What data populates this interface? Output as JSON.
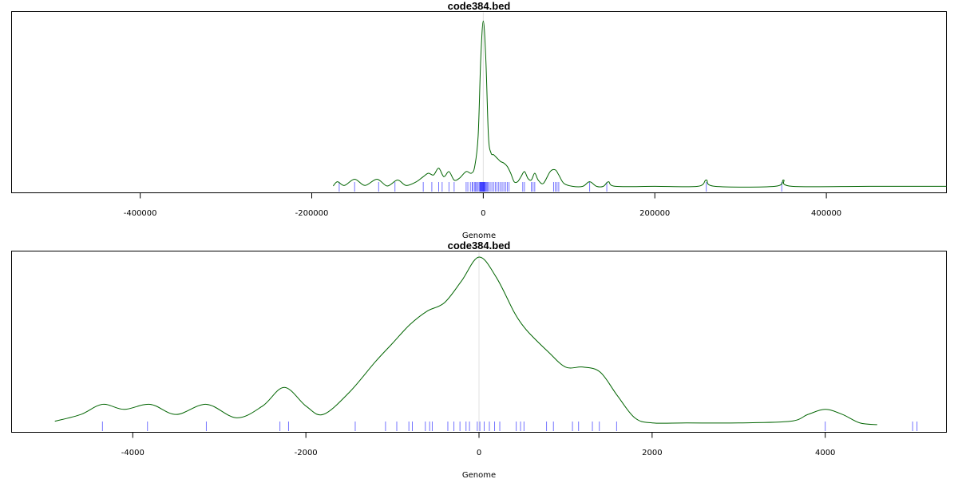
{
  "chart_data": [
    {
      "type": "line",
      "title": "code384.bed",
      "xlabel": "Genome",
      "ylabel": "",
      "xlim": [
        -550000,
        540000
      ],
      "ylim": [
        0,
        1
      ],
      "x_ticks": [
        -400000,
        -200000,
        0,
        200000,
        400000
      ],
      "x_tick_labels": [
        "-400000",
        "-200000",
        "0",
        "200000",
        "400000"
      ],
      "grid": false,
      "line_color": "#006400",
      "rug_color": "#0000ff",
      "center_line_x": 0,
      "density": {
        "x": [
          -175000,
          -170000,
          -162000,
          -150000,
          -138000,
          -124000,
          -112000,
          -100000,
          -90000,
          -78000,
          -70000,
          -64000,
          -58000,
          -52000,
          -46000,
          -40000,
          -34000,
          -28000,
          -20000,
          -14000,
          -10000,
          -6000,
          -3000,
          0,
          3000,
          6000,
          9000,
          12000,
          16000,
          20000,
          24000,
          28000,
          32000,
          36000,
          40000,
          44000,
          48000,
          52000,
          56000,
          60000,
          64000,
          70000,
          78000,
          84000,
          88000,
          94000,
          104000,
          116000,
          124000,
          132000,
          140000,
          146000,
          154000,
          200000,
          250000,
          260000,
          270000,
          340000,
          350000,
          360000,
          450000,
          540000
        ],
        "y": [
          0.005,
          0.03,
          0.008,
          0.045,
          0.008,
          0.045,
          0.005,
          0.04,
          0.008,
          0.03,
          0.06,
          0.08,
          0.07,
          0.11,
          0.06,
          0.09,
          0.04,
          0.05,
          0.09,
          0.08,
          0.12,
          0.3,
          0.75,
          0.98,
          0.75,
          0.3,
          0.2,
          0.19,
          0.17,
          0.15,
          0.14,
          0.12,
          0.08,
          0.03,
          0.03,
          0.06,
          0.09,
          0.05,
          0.04,
          0.08,
          0.04,
          0.02,
          0.09,
          0.1,
          0.07,
          0.02,
          0.003,
          0.003,
          0.03,
          0.003,
          0.003,
          0.03,
          0.003,
          0.003,
          0.003,
          0.04,
          0.003,
          0.003,
          0.04,
          0.003,
          0.003,
          0.003
        ]
      },
      "rug": [
        -168000,
        -150000,
        -122000,
        -103000,
        -70000,
        -60000,
        -52000,
        -48000,
        -40000,
        -34000,
        -20000,
        -18000,
        -15000,
        -13000,
        -12000,
        -10000,
        -9000,
        -8000,
        -6500,
        -5000,
        -4000,
        -3500,
        -3000,
        -2500,
        -2000,
        -1500,
        -1000,
        -500,
        0,
        500,
        1000,
        1500,
        2000,
        3000,
        4000,
        5000,
        6000,
        8000,
        10000,
        12000,
        14000,
        16000,
        18000,
        20000,
        22000,
        24000,
        26000,
        28000,
        30000,
        46000,
        48000,
        56000,
        58000,
        60000,
        82000,
        84000,
        86000,
        88000,
        124000,
        144000,
        260000,
        348000
      ]
    },
    {
      "type": "line",
      "title": "code384.bed",
      "xlabel": "Genome",
      "ylabel": "",
      "xlim": [
        -5400,
        5400
      ],
      "ylim": [
        0,
        1
      ],
      "x_ticks": [
        -4000,
        -2000,
        0,
        2000,
        4000
      ],
      "x_tick_labels": [
        "-4000",
        "-2000",
        "0",
        "2000",
        "4000"
      ],
      "grid": false,
      "line_color": "#006400",
      "rug_color": "#0000ff",
      "center_line_x": 0,
      "density": {
        "x": [
          -4900,
          -4600,
          -4350,
          -4100,
          -3800,
          -3500,
          -3150,
          -2800,
          -2500,
          -2250,
          -2000,
          -1800,
          -1500,
          -1200,
          -1000,
          -800,
          -600,
          -400,
          -200,
          0,
          200,
          400,
          500,
          600,
          800,
          1000,
          1200,
          1400,
          1600,
          1800,
          2000,
          2400,
          3000,
          3600,
          3800,
          4000,
          4200,
          4400,
          4600
        ],
        "y": [
          0.03,
          0.07,
          0.13,
          0.1,
          0.13,
          0.07,
          0.13,
          0.05,
          0.12,
          0.23,
          0.12,
          0.07,
          0.2,
          0.38,
          0.49,
          0.6,
          0.68,
          0.73,
          0.86,
          1.0,
          0.88,
          0.68,
          0.6,
          0.54,
          0.44,
          0.35,
          0.35,
          0.32,
          0.18,
          0.05,
          0.02,
          0.02,
          0.02,
          0.03,
          0.07,
          0.1,
          0.07,
          0.02,
          0.01
        ]
      },
      "rug": [
        -4350,
        -3830,
        -3150,
        -2300,
        -2200,
        -1430,
        -1080,
        -950,
        -810,
        -770,
        -620,
        -570,
        -540,
        -360,
        -290,
        -220,
        -150,
        -110,
        -20,
        10,
        60,
        120,
        180,
        240,
        430,
        480,
        520,
        780,
        860,
        1080,
        1150,
        1310,
        1390,
        1590,
        4000,
        5010,
        5060
      ]
    }
  ]
}
